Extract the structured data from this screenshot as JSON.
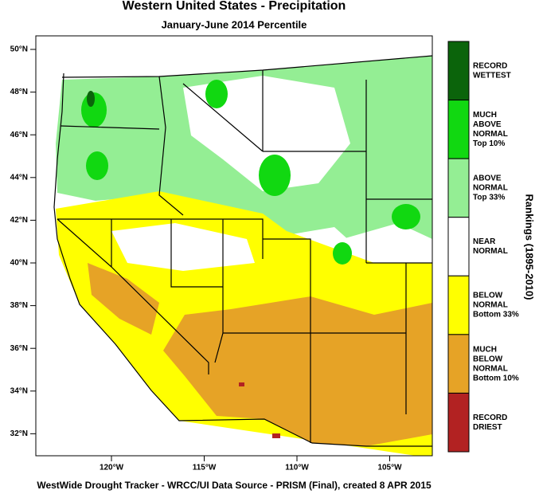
{
  "title": "Western United States - Precipitation",
  "subtitle": "January-June 2014 Percentile",
  "latitude_labels": [
    "50°N",
    "48°N",
    "46°N",
    "44°N",
    "42°N",
    "40°N",
    "38°N",
    "36°N",
    "34°N",
    "32°N"
  ],
  "longitude_labels": [
    "120°W",
    "115°W",
    "110°W",
    "105°W"
  ],
  "legend": {
    "title": "Rankings (1895-2010)",
    "items": [
      {
        "lines": [
          "RECORD",
          "WETTEST"
        ],
        "color": "#0b640b"
      },
      {
        "lines": [
          "MUCH",
          "ABOVE",
          "NORMAL",
          "Top 10%"
        ],
        "color": "#11d811"
      },
      {
        "lines": [
          "ABOVE",
          "NORMAL",
          "Top 33%"
        ],
        "color": "#94ee94"
      },
      {
        "lines": [
          "NEAR",
          "NORMAL"
        ],
        "color": "#ffffff"
      },
      {
        "lines": [
          "BELOW",
          "NORMAL",
          "Bottom 33%"
        ],
        "color": "#ffff00"
      },
      {
        "lines": [
          "MUCH",
          "BELOW",
          "NORMAL",
          "Bottom 10%"
        ],
        "color": "#e6a326"
      },
      {
        "lines": [
          "RECORD",
          "DRIEST"
        ],
        "color": "#b22222"
      }
    ]
  },
  "footer": "WestWide Drought Tracker - WRCC/UI  Data Source - PRISM (Final), created  8 APR 2015"
}
